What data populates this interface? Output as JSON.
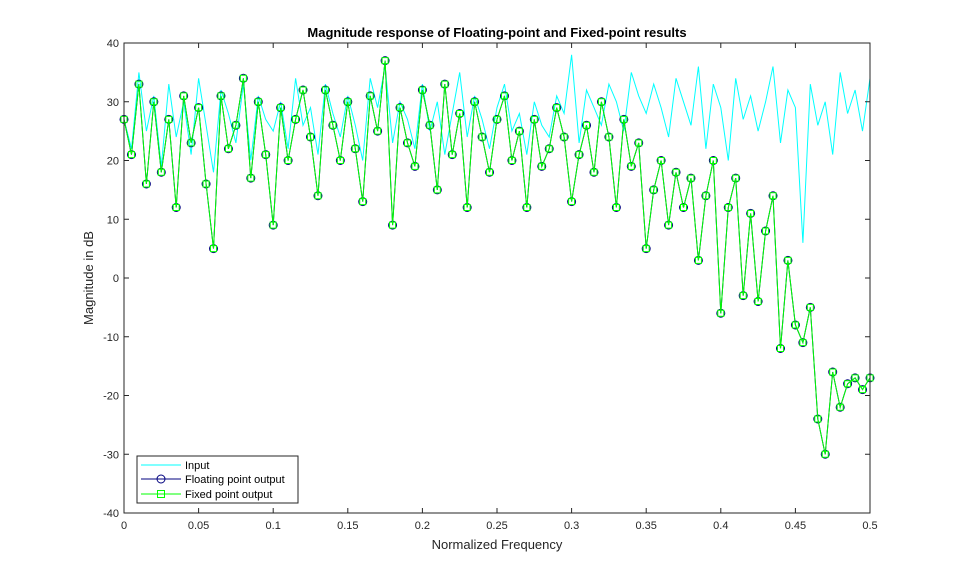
{
  "chart_data": {
    "type": "line",
    "title": "Magnitude response of Floating-point and Fixed-point results",
    "xlabel": "Normalized Frequency",
    "ylabel": "Magnitude in dB",
    "xlim": [
      0,
      0.5
    ],
    "ylim": [
      -40,
      40
    ],
    "xticks": [
      0,
      0.05,
      0.1,
      0.15,
      0.2,
      0.25,
      0.3,
      0.35,
      0.4,
      0.45,
      0.5
    ],
    "xtick_labels": [
      "0",
      "0.05",
      "0.1",
      "0.15",
      "0.2",
      "0.25",
      "0.3",
      "0.35",
      "0.4",
      "0.45",
      "0.5"
    ],
    "yticks": [
      -40,
      -30,
      -20,
      -10,
      0,
      10,
      20,
      30,
      40
    ],
    "ytick_labels": [
      "-40",
      "-30",
      "-20",
      "-10",
      "0",
      "10",
      "20",
      "30",
      "40"
    ],
    "grid": false,
    "legend_location": "bottom-left",
    "series": [
      {
        "name": "Input",
        "color": "#00ffff",
        "marker": "none",
        "x": [
          0,
          0.005,
          0.01,
          0.015,
          0.02,
          0.025,
          0.03,
          0.035,
          0.04,
          0.045,
          0.05,
          0.055,
          0.06,
          0.065,
          0.07,
          0.075,
          0.08,
          0.085,
          0.09,
          0.095,
          0.1,
          0.105,
          0.11,
          0.115,
          0.12,
          0.125,
          0.13,
          0.135,
          0.14,
          0.145,
          0.15,
          0.155,
          0.16,
          0.165,
          0.17,
          0.175,
          0.18,
          0.185,
          0.19,
          0.195,
          0.2,
          0.205,
          0.21,
          0.215,
          0.22,
          0.225,
          0.23,
          0.235,
          0.24,
          0.245,
          0.25,
          0.255,
          0.26,
          0.265,
          0.27,
          0.275,
          0.28,
          0.285,
          0.29,
          0.295,
          0.3,
          0.305,
          0.31,
          0.315,
          0.32,
          0.325,
          0.33,
          0.335,
          0.34,
          0.345,
          0.35,
          0.355,
          0.36,
          0.365,
          0.37,
          0.375,
          0.38,
          0.385,
          0.39,
          0.395,
          0.4,
          0.405,
          0.41,
          0.415,
          0.42,
          0.425,
          0.43,
          0.435,
          0.44,
          0.445,
          0.45,
          0.455,
          0.46,
          0.465,
          0.47,
          0.475,
          0.48,
          0.485,
          0.49,
          0.495,
          0.5
        ],
        "values": [
          27,
          22,
          35,
          25,
          31,
          19,
          33,
          24,
          30,
          21,
          34,
          26,
          18,
          32,
          28,
          23,
          33,
          20,
          31,
          27,
          25,
          30,
          22,
          34,
          26,
          29,
          21,
          33,
          28,
          24,
          31,
          26,
          20,
          34,
          29,
          36,
          23,
          30,
          27,
          22,
          33,
          25,
          30,
          21,
          28,
          35,
          24,
          31,
          27,
          22,
          29,
          33,
          25,
          28,
          21,
          30,
          26,
          24,
          31,
          28,
          38,
          23,
          32,
          29,
          26,
          33,
          30,
          25,
          35,
          31,
          28,
          33,
          29,
          24,
          34,
          30,
          26,
          36,
          22,
          33,
          29,
          20,
          34,
          27,
          31,
          25,
          30,
          36,
          23,
          32,
          29,
          6,
          33,
          26,
          30,
          21,
          35,
          28,
          32,
          25,
          34
        ]
      },
      {
        "name": "Floating point output",
        "color": "#00007f",
        "marker": "circle",
        "x": [
          0,
          0.005,
          0.01,
          0.015,
          0.02,
          0.025,
          0.03,
          0.035,
          0.04,
          0.045,
          0.05,
          0.055,
          0.06,
          0.065,
          0.07,
          0.075,
          0.08,
          0.085,
          0.09,
          0.095,
          0.1,
          0.105,
          0.11,
          0.115,
          0.12,
          0.125,
          0.13,
          0.135,
          0.14,
          0.145,
          0.15,
          0.155,
          0.16,
          0.165,
          0.17,
          0.175,
          0.18,
          0.185,
          0.19,
          0.195,
          0.2,
          0.205,
          0.21,
          0.215,
          0.22,
          0.225,
          0.23,
          0.235,
          0.24,
          0.245,
          0.25,
          0.255,
          0.26,
          0.265,
          0.27,
          0.275,
          0.28,
          0.285,
          0.29,
          0.295,
          0.3,
          0.305,
          0.31,
          0.315,
          0.32,
          0.325,
          0.33,
          0.335,
          0.34,
          0.345,
          0.35,
          0.355,
          0.36,
          0.365,
          0.37,
          0.375,
          0.38,
          0.385,
          0.39,
          0.395,
          0.4,
          0.405,
          0.41,
          0.415,
          0.42,
          0.425,
          0.43,
          0.435,
          0.44,
          0.445,
          0.45,
          0.455,
          0.46,
          0.465,
          0.47,
          0.475,
          0.48,
          0.485,
          0.49,
          0.495,
          0.5
        ],
        "values": [
          27,
          21,
          33,
          16,
          30,
          18,
          27,
          12,
          31,
          23,
          29,
          16,
          5,
          31,
          22,
          26,
          34,
          17,
          30,
          21,
          9,
          29,
          20,
          27,
          32,
          24,
          14,
          32,
          26,
          20,
          30,
          22,
          13,
          31,
          25,
          37,
          9,
          29,
          23,
          19,
          32,
          26,
          15,
          33,
          21,
          28,
          12,
          30,
          24,
          18,
          27,
          31,
          20,
          25,
          12,
          27,
          19,
          22,
          29,
          24,
          13,
          21,
          26,
          18,
          30,
          24,
          12,
          27,
          19,
          23,
          5,
          15,
          20,
          9,
          18,
          12,
          17,
          3,
          14,
          20,
          -6,
          12,
          17,
          -3,
          11,
          -4,
          8,
          14,
          -12,
          3,
          -8,
          -11,
          -5,
          -24,
          -30,
          -16,
          -22,
          -18,
          -17,
          -19,
          -17
        ]
      },
      {
        "name": "Fixed point output",
        "color": "#00ff00",
        "marker": "square",
        "x": [
          0,
          0.005,
          0.01,
          0.015,
          0.02,
          0.025,
          0.03,
          0.035,
          0.04,
          0.045,
          0.05,
          0.055,
          0.06,
          0.065,
          0.07,
          0.075,
          0.08,
          0.085,
          0.09,
          0.095,
          0.1,
          0.105,
          0.11,
          0.115,
          0.12,
          0.125,
          0.13,
          0.135,
          0.14,
          0.145,
          0.15,
          0.155,
          0.16,
          0.165,
          0.17,
          0.175,
          0.18,
          0.185,
          0.19,
          0.195,
          0.2,
          0.205,
          0.21,
          0.215,
          0.22,
          0.225,
          0.23,
          0.235,
          0.24,
          0.245,
          0.25,
          0.255,
          0.26,
          0.265,
          0.27,
          0.275,
          0.28,
          0.285,
          0.29,
          0.295,
          0.3,
          0.305,
          0.31,
          0.315,
          0.32,
          0.325,
          0.33,
          0.335,
          0.34,
          0.345,
          0.35,
          0.355,
          0.36,
          0.365,
          0.37,
          0.375,
          0.38,
          0.385,
          0.39,
          0.395,
          0.4,
          0.405,
          0.41,
          0.415,
          0.42,
          0.425,
          0.43,
          0.435,
          0.44,
          0.445,
          0.45,
          0.455,
          0.46,
          0.465,
          0.47,
          0.475,
          0.48,
          0.485,
          0.49,
          0.495,
          0.5
        ],
        "values": [
          27,
          21,
          33,
          16,
          30,
          18,
          27,
          12,
          31,
          23,
          29,
          16,
          5,
          31,
          22,
          26,
          34,
          17,
          30,
          21,
          9,
          29,
          20,
          27,
          32,
          24,
          14,
          32,
          26,
          20,
          30,
          22,
          13,
          31,
          25,
          37,
          9,
          29,
          23,
          19,
          32,
          26,
          15,
          33,
          21,
          28,
          12,
          30,
          24,
          18,
          27,
          31,
          20,
          25,
          12,
          27,
          19,
          22,
          29,
          24,
          13,
          21,
          26,
          18,
          30,
          24,
          12,
          27,
          19,
          23,
          5,
          15,
          20,
          9,
          18,
          12,
          17,
          3,
          14,
          20,
          -6,
          12,
          17,
          -3,
          11,
          -4,
          8,
          14,
          -12,
          3,
          -8,
          -11,
          -5,
          -24,
          -30,
          -16,
          -22,
          -18,
          -17,
          -19,
          -17
        ]
      }
    ]
  }
}
